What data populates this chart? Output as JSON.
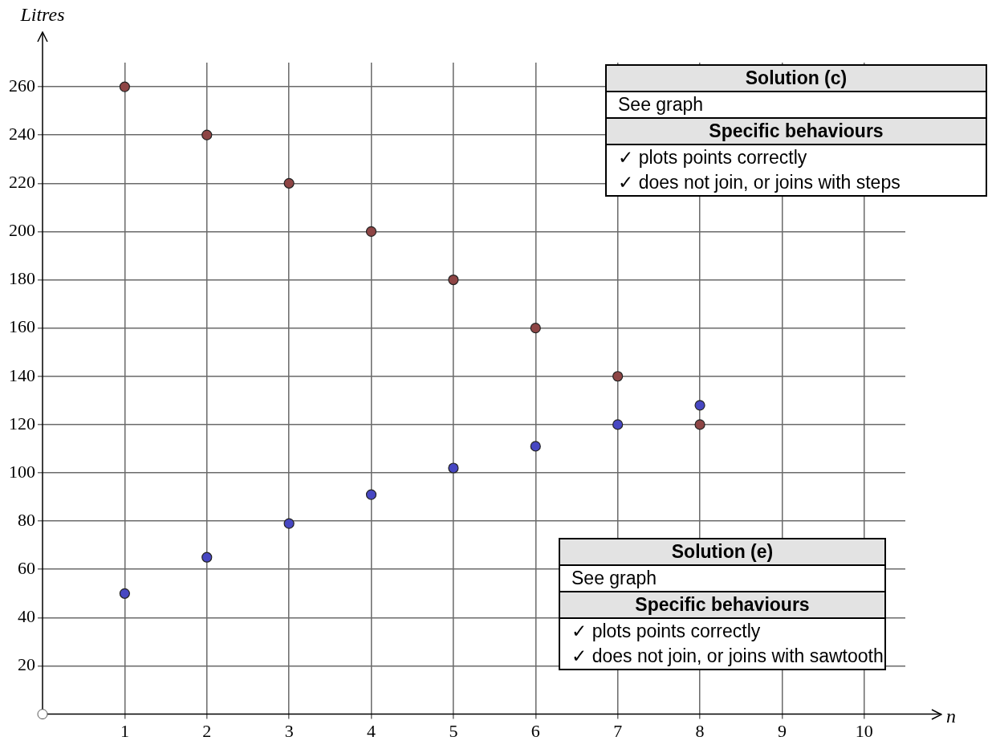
{
  "chart_data": {
    "type": "scatter",
    "xlabel": "n",
    "ylabel": "Litres",
    "x": [
      1,
      2,
      3,
      4,
      5,
      6,
      7,
      8
    ],
    "series": [
      {
        "color": "#8e4545",
        "values": [
          260,
          240,
          220,
          200,
          180,
          160,
          140,
          120
        ]
      },
      {
        "color": "#4747c2",
        "values": [
          50,
          65,
          79,
          91,
          102,
          111,
          120,
          128
        ]
      }
    ],
    "xlim": [
      0,
      10.5
    ],
    "ylim": [
      0,
      270
    ],
    "xticks": [
      1,
      2,
      3,
      4,
      5,
      6,
      7,
      8,
      9,
      10
    ],
    "yticks": [
      20,
      40,
      60,
      80,
      100,
      120,
      140,
      160,
      180,
      200,
      220,
      240,
      260
    ],
    "grid": true,
    "marker": "circle",
    "legend": false,
    "annotations": [
      "Solution (c)",
      "See graph",
      "Specific behaviours",
      "✓ plots points correctly",
      "✓ does not join, or joins with steps",
      "Solution (e)",
      "See graph",
      "Specific behaviours",
      "✓ plots points correctly",
      "✓ does not join, or joins with sawtooth"
    ]
  }
}
